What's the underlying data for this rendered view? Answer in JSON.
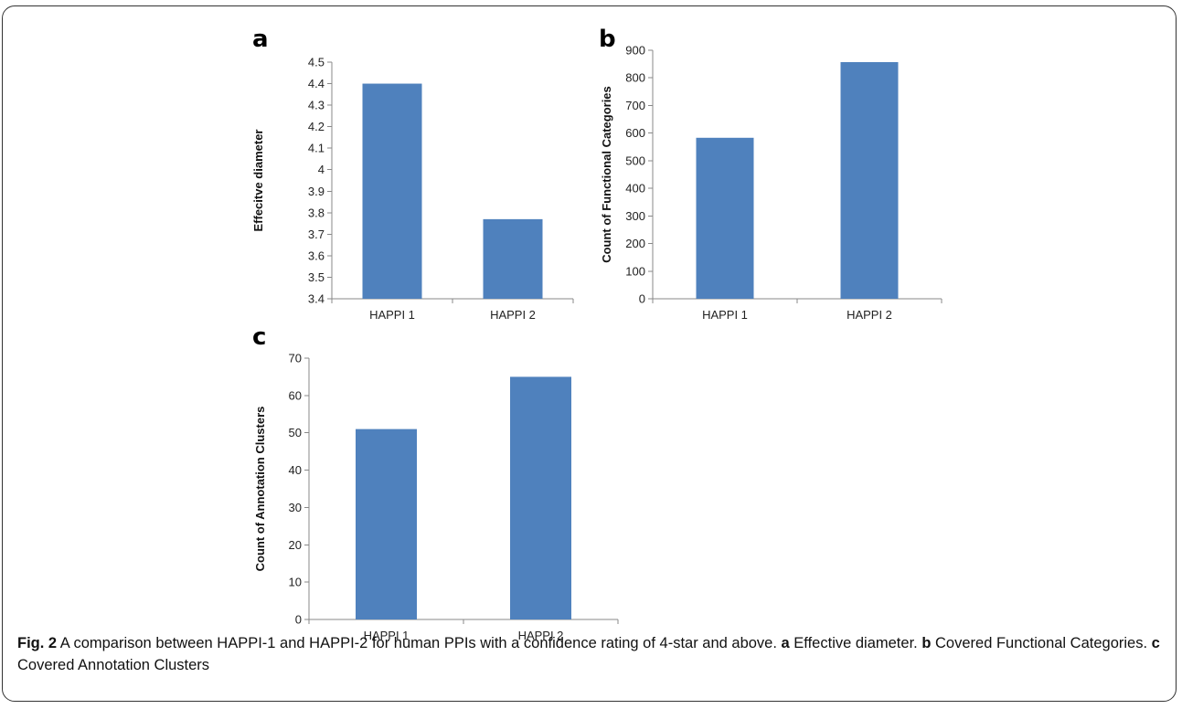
{
  "panels": [
    "a",
    "b",
    "c"
  ],
  "caption": {
    "fig_label": "Fig. 2",
    "text_main": " A comparison between HAPPI-1 and HAPPI-2 for human PPIs with a confidence rating of 4-star and above. ",
    "a_label": "a",
    "a_text": " Effective diameter. ",
    "b_label": "b",
    "b_text": " Covered Functional Categories. ",
    "c_label": "c",
    "c_text": " Covered Annotation Clusters"
  },
  "chart_data": [
    {
      "type": "bar",
      "panel": "a",
      "categories": [
        "HAPPI 1",
        "HAPPI 2"
      ],
      "values": [
        4.4,
        3.77
      ],
      "ylabel": "Effecitve diameter",
      "ylim": [
        3.4,
        4.5
      ],
      "yticks": [
        "3.4",
        "3.5",
        "3.6",
        "3.7",
        "3.8",
        "3.9",
        "4",
        "4.1",
        "4.2",
        "4.3",
        "4.4",
        "4.5"
      ],
      "bar_color": "#4f81bd",
      "grid": false
    },
    {
      "type": "bar",
      "panel": "b",
      "categories": [
        "HAPPI 1",
        "HAPPI 2"
      ],
      "values": [
        583,
        857
      ],
      "ylabel": "Count of Functional Categories",
      "ylim": [
        0,
        900
      ],
      "yticks": [
        "0",
        "100",
        "200",
        "300",
        "400",
        "500",
        "600",
        "700",
        "800",
        "900"
      ],
      "bar_color": "#4f81bd",
      "grid": false
    },
    {
      "type": "bar",
      "panel": "c",
      "categories": [
        "HAPPI 1",
        "HAPPI 2"
      ],
      "values": [
        51,
        65
      ],
      "ylabel": "Count of Annotation Clusters",
      "ylim": [
        0,
        70
      ],
      "yticks": [
        "0",
        "10",
        "20",
        "30",
        "40",
        "50",
        "60",
        "70"
      ],
      "bar_color": "#4f81bd",
      "grid": false
    }
  ]
}
